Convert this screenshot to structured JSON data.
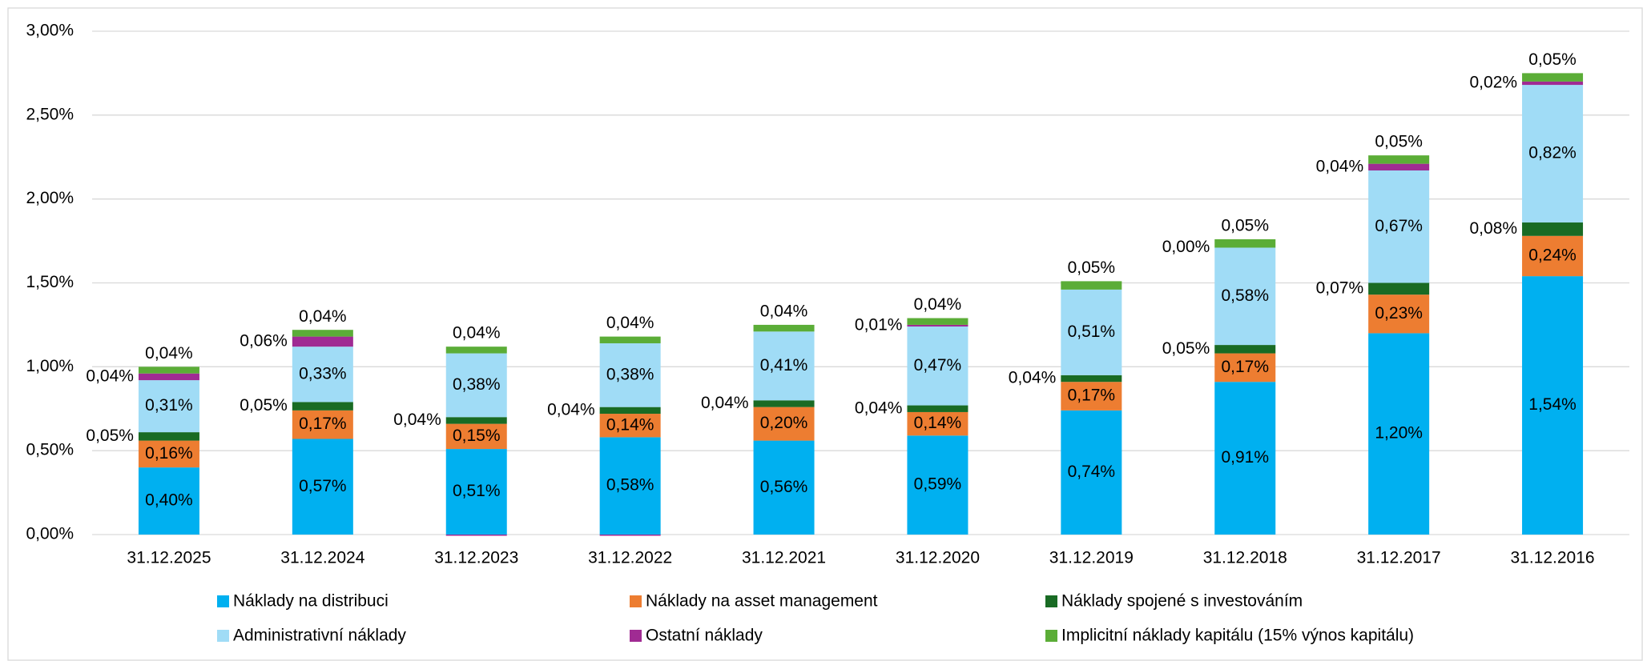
{
  "chart_data": {
    "type": "stacked_bar",
    "categories": [
      "31.12.2025",
      "31.12.2024",
      "31.12.2023",
      "31.12.2022",
      "31.12.2021",
      "31.12.2020",
      "31.12.2019",
      "31.12.2018",
      "31.12.2017",
      "31.12.2016"
    ],
    "ylim": [
      0,
      3
    ],
    "yticks": [
      {
        "value": 0,
        "label": "0,00%"
      },
      {
        "value": 0.5,
        "label": "0,50%"
      },
      {
        "value": 1,
        "label": "1,00%"
      },
      {
        "value": 1.5,
        "label": "1,50%"
      },
      {
        "value": 2,
        "label": "2,00%"
      },
      {
        "value": 2.5,
        "label": "2,50%"
      },
      {
        "value": 3,
        "label": "3,00%"
      }
    ],
    "grid": true,
    "legend": "bottom",
    "series": [
      {
        "name": "Náklady na distribuci",
        "color": "#00b0f0",
        "label_position": "inside",
        "values": [
          0.4,
          0.57,
          0.51,
          0.58,
          0.56,
          0.59,
          0.74,
          0.91,
          1.2,
          1.54
        ],
        "value_labels": [
          "0,40%",
          "0,57%",
          "0,51%",
          "0,58%",
          "0,56%",
          "0,59%",
          "0,74%",
          "0,91%",
          "1,20%",
          "1,54%"
        ]
      },
      {
        "name": "Náklady na asset management",
        "color": "#ed7d31",
        "label_position": "inside",
        "values": [
          0.16,
          0.17,
          0.15,
          0.14,
          0.2,
          0.14,
          0.17,
          0.17,
          0.23,
          0.24
        ],
        "value_labels": [
          "0,16%",
          "0,17%",
          "0,15%",
          "0,14%",
          "0,20%",
          "0,14%",
          "0,17%",
          "0,17%",
          "0,23%",
          "0,24%"
        ]
      },
      {
        "name": "Náklady spojené s investováním",
        "color": "#196b24",
        "label_position": "left",
        "values": [
          0.05,
          0.05,
          0.04,
          0.04,
          0.04,
          0.04,
          0.04,
          0.05,
          0.07,
          0.08
        ],
        "value_labels": [
          "0,05%",
          "0,05%",
          "0,04%",
          "0,04%",
          "0,04%",
          "0,04%",
          "0,04%",
          "0,05%",
          "0,07%",
          "0,08%"
        ]
      },
      {
        "name": "Administrativní náklady",
        "color": "#a0dcf6",
        "label_position": "inside",
        "values": [
          0.31,
          0.33,
          0.38,
          0.38,
          0.41,
          0.47,
          0.51,
          0.58,
          0.67,
          0.82
        ],
        "value_labels": [
          "0,31%",
          "0,33%",
          "0,38%",
          "0,38%",
          "0,41%",
          "0,47%",
          "0,51%",
          "0,58%",
          "0,67%",
          "0,82%"
        ]
      },
      {
        "name": "Ostatní náklady",
        "color": "#a02b93",
        "label_position": "left",
        "values": [
          0.04,
          0.06,
          -0.005,
          -0.005,
          0,
          0.01,
          0,
          0.0,
          0.04,
          0.02
        ],
        "value_labels": [
          "0,04%",
          "0,06%",
          null,
          null,
          null,
          "0,01%",
          null,
          "0,00%",
          "0,04%",
          "0,02%"
        ]
      },
      {
        "name": "Implicitní náklady kapitálu (15% výnos kapitálu)",
        "color": "#5bad37",
        "label_position": "above",
        "values": [
          0.04,
          0.04,
          0.04,
          0.04,
          0.04,
          0.04,
          0.05,
          0.05,
          0.05,
          0.05
        ],
        "value_labels": [
          "0,04%",
          "0,04%",
          "0,04%",
          "0,04%",
          "0,04%",
          "0,04%",
          "0,05%",
          "0,05%",
          "0,05%",
          "0,05%"
        ]
      }
    ]
  }
}
